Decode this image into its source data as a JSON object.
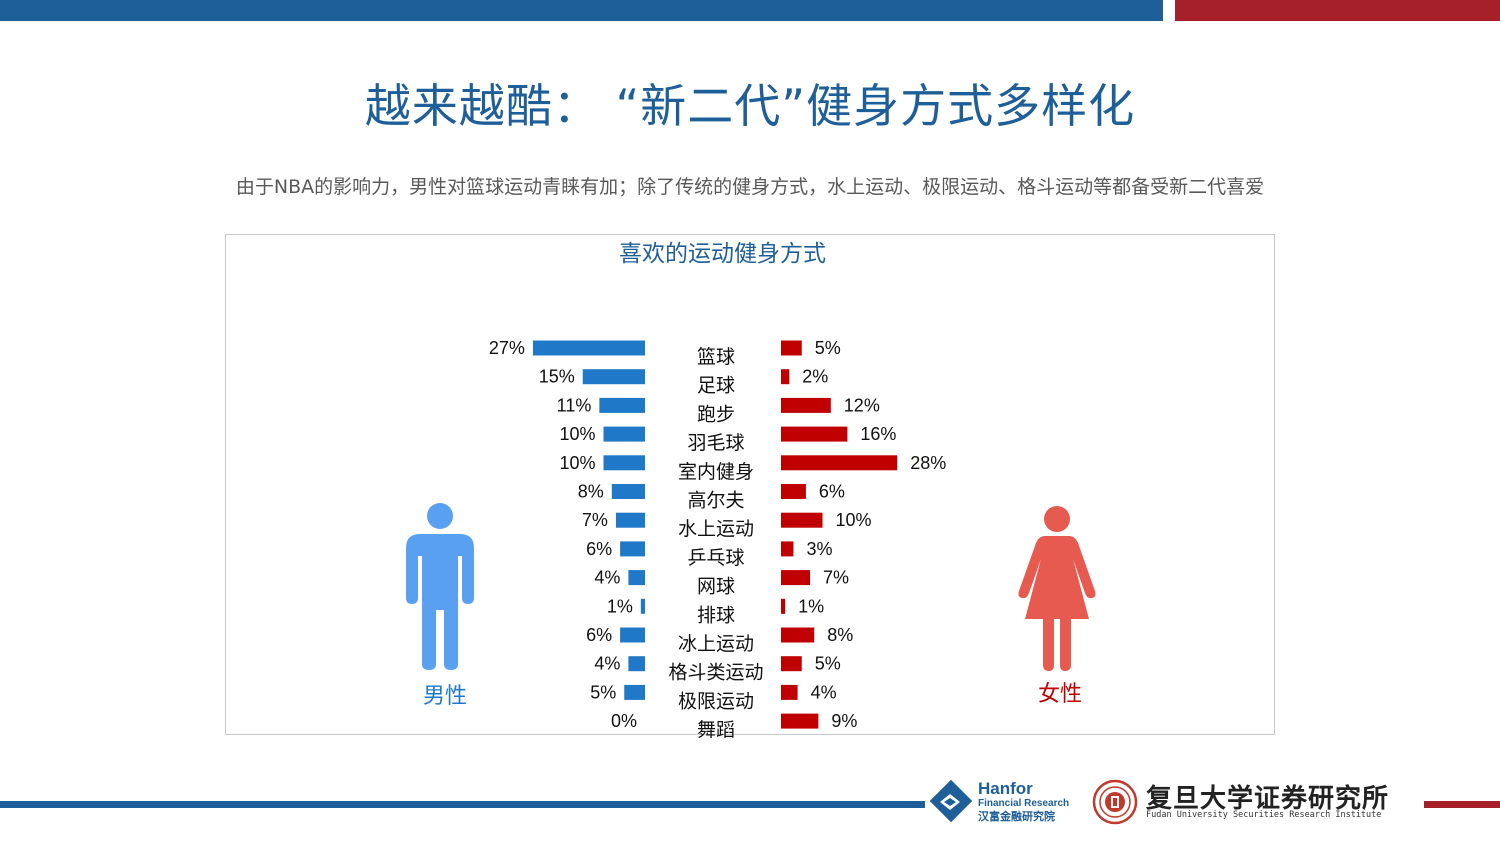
{
  "page": {
    "title": "越来越酷：  “新二代”健身方式多样化",
    "subtitle": "由于NBA的影响力，男性对篮球运动青睐有加；除了传统的健身方式，水上运动、极限运动、格斗运动等都备受新二代喜爱"
  },
  "colors": {
    "male": "#1f78c8",
    "female": "#c00000",
    "male_icon": "#5aa0f0",
    "female_icon": "#e65a50",
    "title": "#1f5f99"
  },
  "chart_data": {
    "type": "bar",
    "title": "喜欢的运动健身方式",
    "categories": [
      "篮球",
      "足球",
      "跑步",
      "羽毛球",
      "室内健身",
      "高尔夫",
      "水上运动",
      "乒乓球",
      "网球",
      "排球",
      "冰上运动",
      "格斗类运动",
      "极限运动",
      "舞蹈"
    ],
    "series": [
      {
        "name": "男性",
        "values": [
          27,
          15,
          11,
          10,
          10,
          8,
          7,
          6,
          4,
          1,
          6,
          4,
          5,
          0
        ],
        "labels": [
          "27%",
          "15%",
          "11%",
          "10%",
          "10%",
          "8%",
          "7%",
          "6%",
          "4%",
          "1%",
          "6%",
          "4%",
          "5%",
          "0%"
        ]
      },
      {
        "name": "女性",
        "values": [
          5,
          2,
          12,
          16,
          28,
          6,
          10,
          3,
          7,
          1,
          8,
          5,
          4,
          9
        ],
        "labels": [
          "5%",
          "2%",
          "12%",
          "16%",
          "28%",
          "6%",
          "10%",
          "3%",
          "7%",
          "1%",
          "8%",
          "5%",
          "4%",
          "9%"
        ]
      }
    ],
    "unit": "%",
    "legend": [
      "男性",
      "女性"
    ]
  },
  "legend": {
    "male": "男性",
    "female": "女性"
  },
  "footer": {
    "logo1": {
      "line1": "Hanfor",
      "line2": "Financial Research",
      "line3": "汉富金融研究院"
    },
    "logo2": {
      "cn": "复旦大学证券研究所",
      "en": "Fudan University Securities Research Institute"
    }
  }
}
